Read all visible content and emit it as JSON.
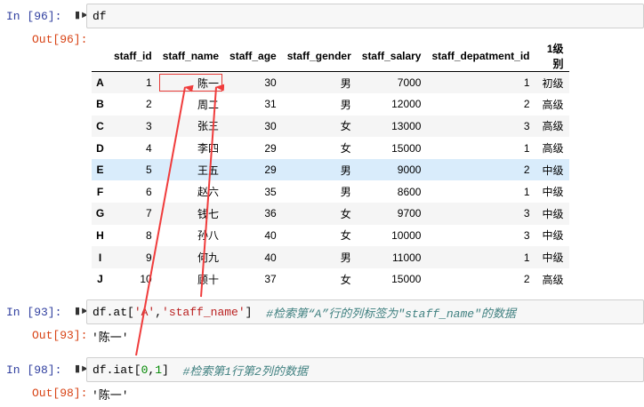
{
  "cells": [
    {
      "in_label": "In  [96]:",
      "code": "df",
      "out_label": "Out[96]:"
    },
    {
      "in_label": "In  [93]:",
      "code_parts": [
        "df.at[",
        "'A'",
        ",",
        "'staff_name'",
        "]  ",
        "#检索第“A”行的列标签为\"staff_name\"的数据"
      ],
      "out_label": "Out[93]:",
      "result": "'陈一'"
    },
    {
      "in_label": "In  [98]:",
      "code_parts": [
        "df.iat[",
        "0",
        ",",
        "1",
        "]  ",
        "#检索第1行第2列的数据"
      ],
      "out_label": "Out[98]:",
      "result": "'陈一'"
    }
  ],
  "table": {
    "columns": [
      "",
      "staff_id",
      "staff_name",
      "staff_age",
      "staff_gender",
      "staff_salary",
      "staff_depatment_id",
      "1级别"
    ],
    "rows": [
      [
        "A",
        "1",
        "陈一",
        "30",
        "男",
        "7000",
        "1",
        "初级"
      ],
      [
        "B",
        "2",
        "周二",
        "31",
        "男",
        "12000",
        "2",
        "高级"
      ],
      [
        "C",
        "3",
        "张三",
        "30",
        "女",
        "13000",
        "3",
        "高级"
      ],
      [
        "D",
        "4",
        "李四",
        "29",
        "女",
        "15000",
        "1",
        "高级"
      ],
      [
        "E",
        "5",
        "王五",
        "29",
        "男",
        "9000",
        "2",
        "中级"
      ],
      [
        "F",
        "6",
        "赵六",
        "35",
        "男",
        "8600",
        "1",
        "中级"
      ],
      [
        "G",
        "7",
        "钱七",
        "36",
        "女",
        "9700",
        "3",
        "中级"
      ],
      [
        "H",
        "8",
        "孙八",
        "40",
        "女",
        "10000",
        "3",
        "中级"
      ],
      [
        "I",
        "9",
        "何九",
        "40",
        "男",
        "11000",
        "1",
        "中级"
      ],
      [
        "J",
        "10",
        "顾十",
        "37",
        "女",
        "15000",
        "2",
        "高级"
      ]
    ],
    "hovered_row": "E",
    "highlighted_cell": "陈一"
  },
  "colors": {
    "annotation": "#f03c3c",
    "hover": "#d9ecfb",
    "in_prompt": "#303f9f",
    "out_prompt": "#d84315"
  }
}
